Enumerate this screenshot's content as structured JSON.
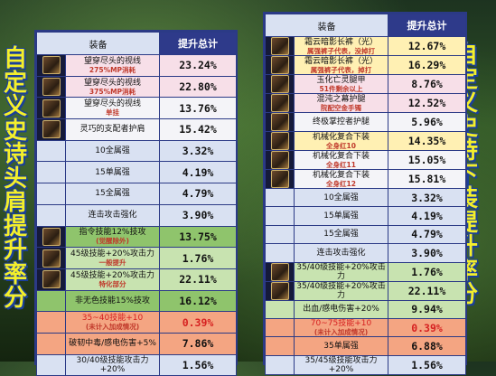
{
  "left_title": [
    "自",
    "定",
    "义",
    "史",
    "诗",
    "头",
    "肩",
    "提",
    "升",
    "率",
    "分"
  ],
  "right_title": [
    "自",
    "定",
    "义",
    "史",
    "诗",
    "下",
    "装",
    "提",
    "升",
    "率",
    "分"
  ],
  "left_table": {
    "header": {
      "gear": "装备",
      "boost": "提升总计"
    },
    "rows": [
      {
        "icon": "shoulder-armor-icon",
        "name": "望穿尽头的视线",
        "sub": "275%MP消耗",
        "value": "23.24%",
        "bg": "pink"
      },
      {
        "icon": "shoulder-armor-icon",
        "name": "望穿尽头的视线",
        "sub": "375%MP消耗",
        "value": "22.80%",
        "bg": "pink"
      },
      {
        "icon": "shoulder-armor-icon",
        "name": "望穿尽头的视线",
        "sub": "单挂",
        "value": "13.76%",
        "bg": "white"
      },
      {
        "icon": "shoulder-armor-icon",
        "name": "灵巧的支配者护肩",
        "sub": "",
        "value": "15.42%",
        "bg": "white"
      },
      {
        "icon": "",
        "name": "10全属强",
        "sub": "",
        "value": "3.32%",
        "bg": "blue"
      },
      {
        "icon": "",
        "name": "15单属强",
        "sub": "",
        "value": "4.19%",
        "bg": "blue"
      },
      {
        "icon": "",
        "name": "15全属强",
        "sub": "",
        "value": "4.79%",
        "bg": "blue"
      },
      {
        "icon": "",
        "name": "连击攻击强化",
        "sub": "",
        "value": "3.90%",
        "bg": "blue"
      },
      {
        "icon": "shoulder-armor-icon",
        "name": "指令技能12%技攻",
        "sub": "(觉醒除外)",
        "value": "13.75%",
        "bg": "green"
      },
      {
        "icon": "shoulder-armor-icon",
        "name": "45级技能+20%攻击力",
        "sub": "一般提升",
        "value": "1.76%",
        "bg": "lgreen"
      },
      {
        "icon": "shoulder-armor-icon",
        "name": "45级技能+20%攻击力",
        "sub": "特化部分",
        "value": "22.11%",
        "bg": "lgreen"
      },
      {
        "icon": "",
        "name": "非无色技能15%技攻",
        "sub": "",
        "value": "16.12%",
        "bg": "green"
      },
      {
        "icon": "",
        "name": "35~40技能+10",
        "sub": "(未计入加成情况)",
        "value": "0.39%",
        "bg": "orange"
      },
      {
        "icon": "",
        "name": "破韧中毒/感电伤害+5%",
        "sub": "",
        "value": "7.86%",
        "bg": "orange"
      },
      {
        "icon": "",
        "name": "30/40级技能攻击力+20%",
        "sub": "",
        "value": "1.56%",
        "bg": "blue"
      }
    ]
  },
  "right_table": {
    "header": {
      "gear": "装备",
      "boost": "提升总计"
    },
    "rows": [
      {
        "icon": "pants-armor-icon",
        "name": "霜云暗影长裤（光）",
        "sub": "属强裤子代表，没掉打",
        "value": "12.67%",
        "bg": "yellow"
      },
      {
        "icon": "pants-armor-icon",
        "name": "霜云暗影长裤（光）",
        "sub": "属强裤子代表，掉打",
        "value": "16.29%",
        "bg": "yellow"
      },
      {
        "icon": "pants-armor-icon",
        "name": "玉化亡灵腿甲",
        "sub": "51件剩余以上",
        "value": "8.76%",
        "bg": "pink"
      },
      {
        "icon": "pants-armor-icon",
        "name": "混沌之幕护腿",
        "sub": "院配空金手镯",
        "value": "12.52%",
        "bg": "pink"
      },
      {
        "icon": "pants-armor-icon",
        "name": "终极掌控者护腿",
        "sub": "",
        "value": "5.96%",
        "bg": "white"
      },
      {
        "icon": "pants-armor-icon",
        "name": "机械化复合下装",
        "sub": "全身红10",
        "value": "14.35%",
        "bg": "yellow"
      },
      {
        "icon": "pants-armor-icon",
        "name": "机械化复合下装",
        "sub": "全身红11",
        "value": "15.05%",
        "bg": "white"
      },
      {
        "icon": "pants-armor-icon",
        "name": "机械化复合下装",
        "sub": "全身红12",
        "value": "15.81%",
        "bg": "white"
      },
      {
        "icon": "",
        "name": "10全属强",
        "sub": "",
        "value": "3.32%",
        "bg": "blue"
      },
      {
        "icon": "",
        "name": "15单属强",
        "sub": "",
        "value": "4.19%",
        "bg": "blue"
      },
      {
        "icon": "",
        "name": "15全属强",
        "sub": "",
        "value": "4.79%",
        "bg": "blue"
      },
      {
        "icon": "",
        "name": "连击攻击强化",
        "sub": "",
        "value": "3.90%",
        "bg": "blue"
      },
      {
        "icon": "pants-armor-icon",
        "name": "35/40级技能+20%攻击力",
        "sub": "",
        "value": "1.76%",
        "bg": "lgreen"
      },
      {
        "icon": "pants-armor-icon",
        "name": "35/40级技能+20%攻击力",
        "sub": "",
        "value": "22.11%",
        "bg": "lgreen"
      },
      {
        "icon": "",
        "name": "出血/感电伤害+20%",
        "sub": "",
        "value": "9.94%",
        "bg": "lgreen"
      },
      {
        "icon": "",
        "name": "70~75技能+10",
        "sub": "(未计入加成情况)",
        "value": "0.39%",
        "bg": "orange"
      },
      {
        "icon": "",
        "name": "35单属强",
        "sub": "",
        "value": "6.88%",
        "bg": "orange"
      },
      {
        "icon": "",
        "name": "35/45级技能攻击力+20%",
        "sub": "",
        "value": "1.56%",
        "bg": "blue"
      }
    ]
  },
  "colors": {
    "title_yellow": "#f4ef2b",
    "title_outline": "#1a3f9a",
    "header_bg": "#2e3a8a",
    "sub_red": "#c0392b"
  }
}
